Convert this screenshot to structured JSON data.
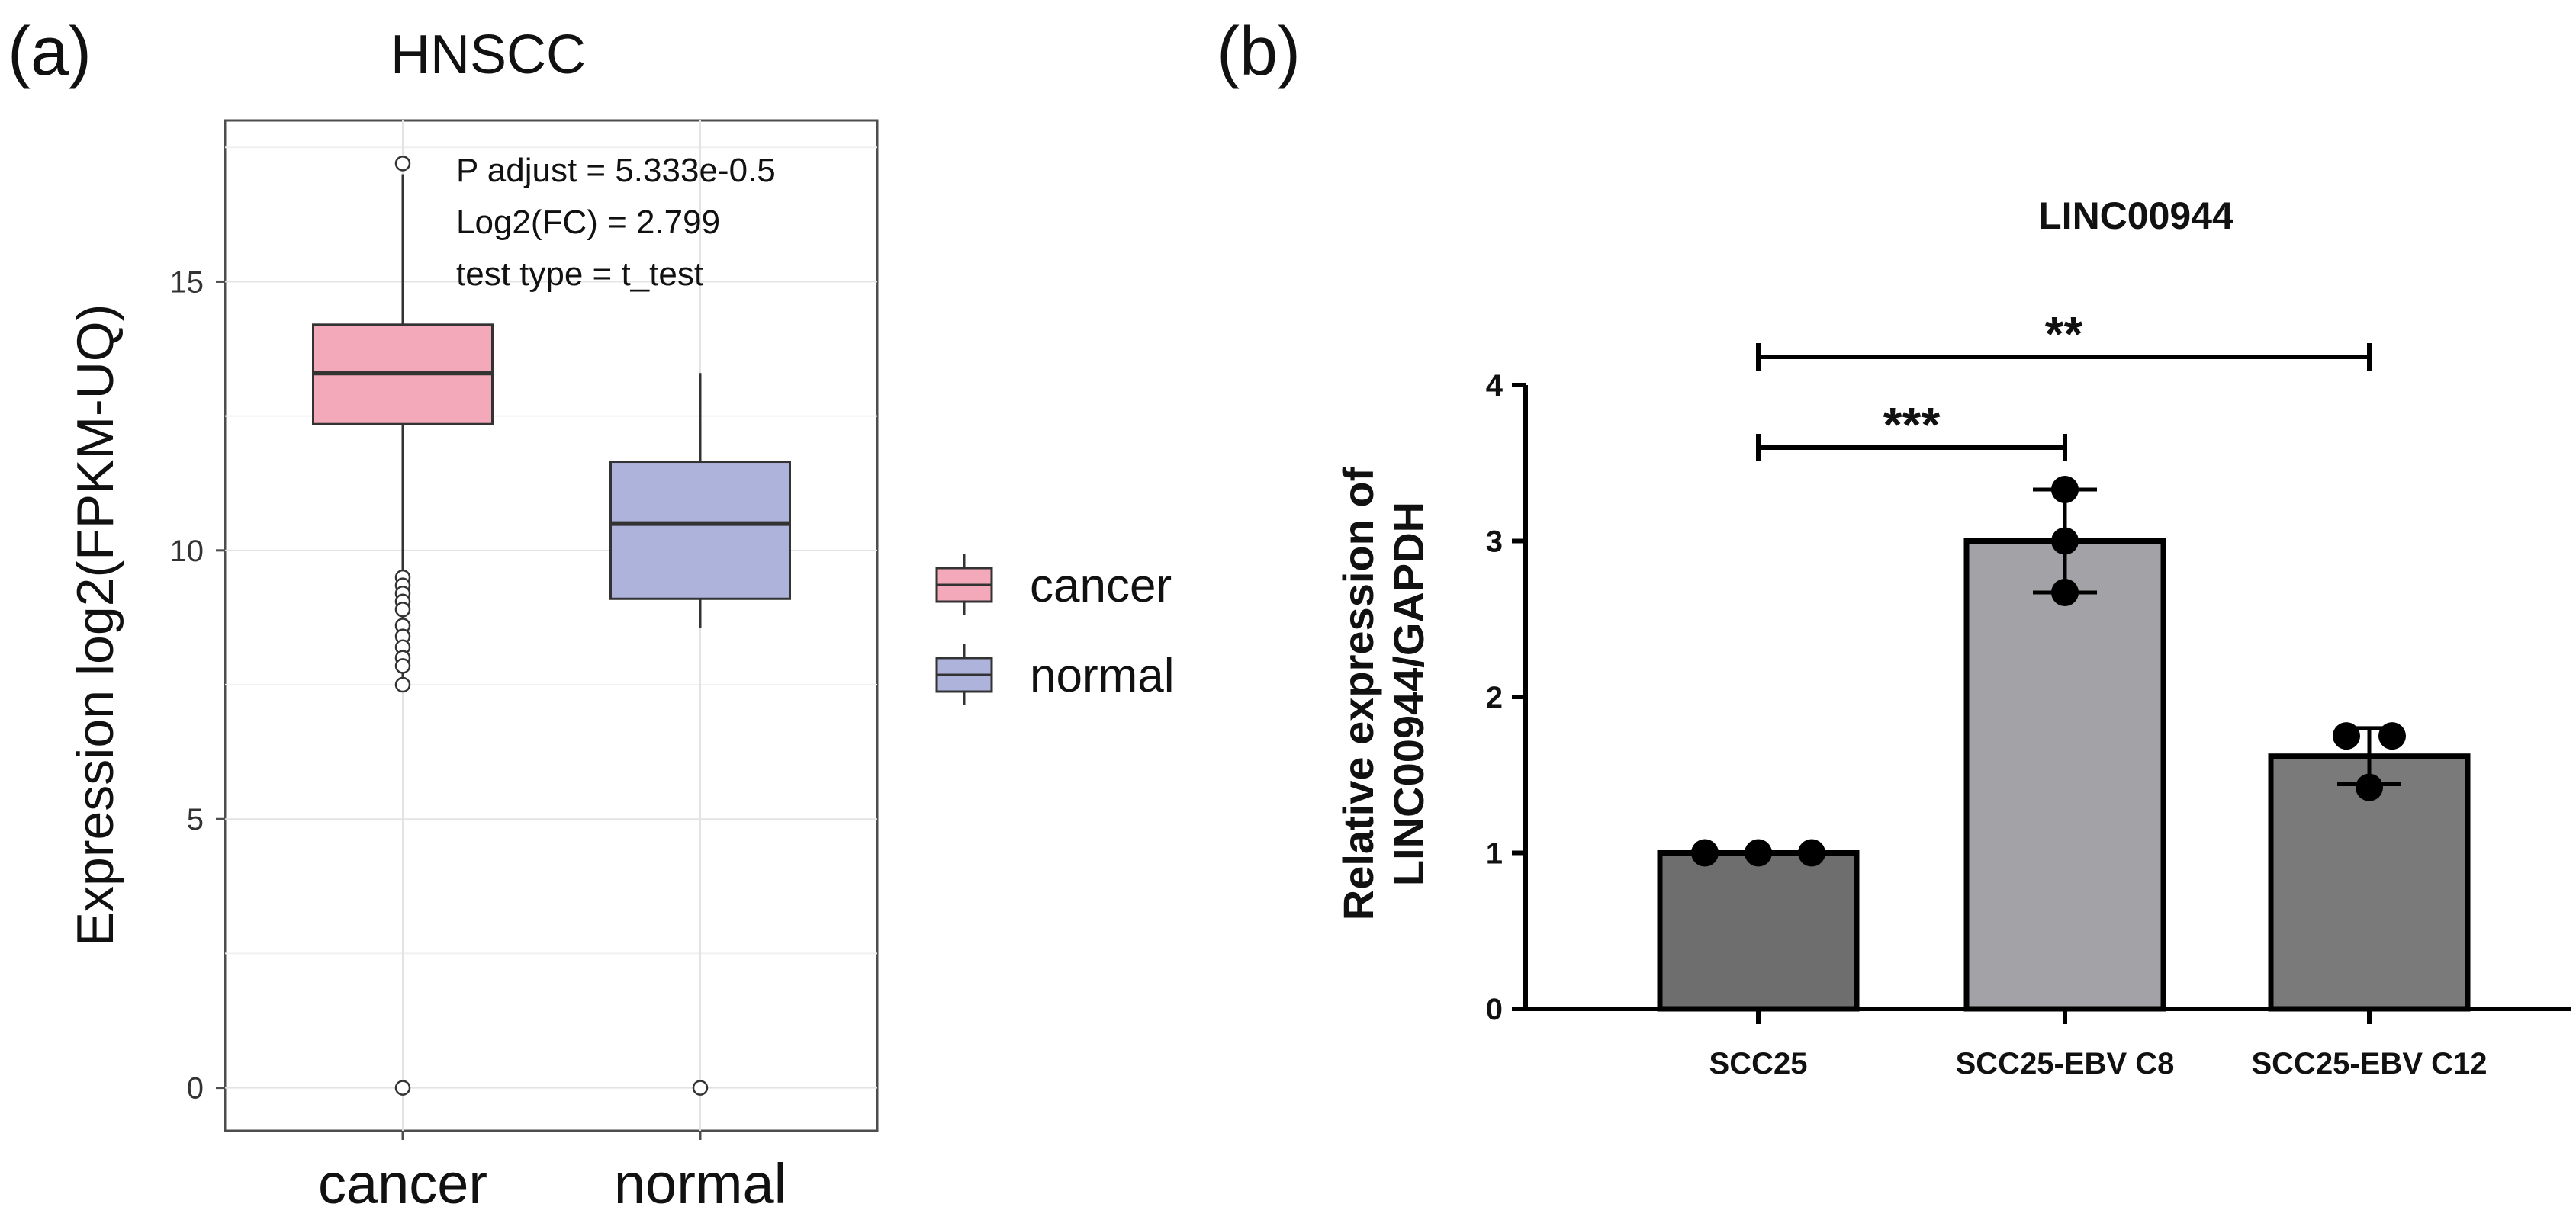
{
  "chart_data": [
    {
      "type": "boxplot",
      "panel_label": "(a)",
      "title": "HNSCC",
      "xlabel": "",
      "ylabel": "Expression log2(FPKM-UQ)",
      "ylim": [
        -0.8,
        18.0
      ],
      "yticks": [
        0,
        5,
        10,
        15
      ],
      "grid": true,
      "categories": [
        "cancer",
        "normal"
      ],
      "series": [
        {
          "name": "cancer",
          "color": "#f4a9bb",
          "whisker_low": 7.6,
          "q1": 12.35,
          "median": 13.3,
          "q3": 14.2,
          "whisker_high": 17.0,
          "outliers": [
            17.2,
            9.5,
            9.35,
            9.2,
            9.05,
            8.9,
            8.6,
            8.4,
            8.2,
            8.0,
            7.85,
            7.5,
            0
          ]
        },
        {
          "name": "normal",
          "color": "#aeb3dc",
          "whisker_low": 8.55,
          "q1": 9.1,
          "median": 10.5,
          "q3": 11.65,
          "whisker_high": 13.3,
          "outliers": [
            0
          ]
        }
      ],
      "annotations": [
        "P adjust = 5.333e-0.5",
        "Log2(FC) = 2.799",
        "test type = t_test"
      ],
      "legend": [
        "cancer",
        "normal"
      ],
      "legend_position": "right"
    },
    {
      "type": "bar",
      "panel_label": "(b)",
      "title": "LINC00944",
      "xlabel": "",
      "ylabel_lines": [
        "Relative expression of",
        "LINC00944/GAPDH"
      ],
      "ylim": [
        0,
        4
      ],
      "yticks": [
        0,
        1,
        2,
        3,
        4
      ],
      "grid": false,
      "categories": [
        "SCC25",
        "SCC25-EBV C8",
        "SCC25-EBV C12"
      ],
      "values": [
        1.0,
        3.0,
        1.62
      ],
      "errors": [
        0.0,
        0.33,
        0.18
      ],
      "bar_colors": [
        "#6e6e6e",
        "#a3a3a7",
        "#7a7a7a"
      ],
      "points": [
        [
          1.0,
          1.0,
          1.0
        ],
        [
          3.33,
          3.0,
          2.67
        ],
        [
          1.75,
          1.75,
          1.42
        ]
      ],
      "significance": [
        {
          "from": 0,
          "to": 1,
          "label": "***"
        },
        {
          "from": 0,
          "to": 2,
          "label": "**"
        }
      ]
    }
  ]
}
